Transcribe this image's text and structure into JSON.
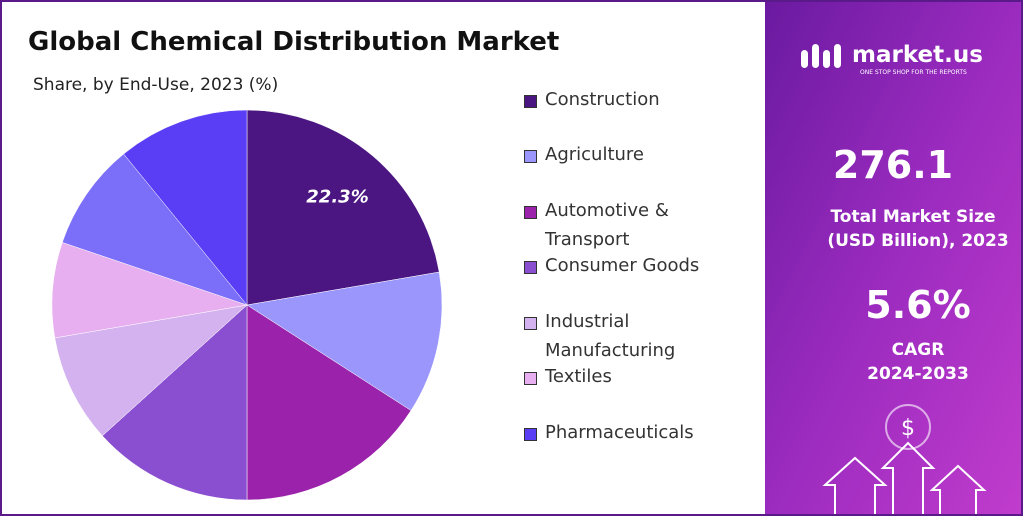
{
  "chart_data": {
    "type": "pie",
    "title": "Global Chemical Distribution Market",
    "subtitle": "Share, by End-Use, 2023 (%)",
    "categories": [
      "Construction",
      "Agriculture",
      "Automotive & Transport",
      "Consumer Goods",
      "Industrial Manufacturing",
      "Textiles",
      null,
      "Pharmaceuticals"
    ],
    "values": [
      22.3,
      11.8,
      15.9,
      13.3,
      9.0,
      7.9,
      8.9,
      10.9
    ],
    "value_labels": [
      "22.3%",
      null,
      null,
      null,
      null,
      null,
      null,
      null
    ],
    "colors": [
      "#4b1682",
      "#9a96fc",
      "#9b22aa",
      "#8a4fd0",
      "#d3b2ef",
      "#e7aef0",
      "#7b6ef8",
      "#5a3ef6"
    ],
    "legend": "right"
  },
  "panel": {
    "brand": "market.us",
    "tagline": "ONE STOP SHOP FOR THE REPORTS",
    "market_size": "276.1",
    "market_size_label": [
      "Total Market Size",
      "(USD Billion), 2023"
    ],
    "cagr": "5.6%",
    "cagr_label": [
      "CAGR",
      "2024-2033"
    ]
  }
}
